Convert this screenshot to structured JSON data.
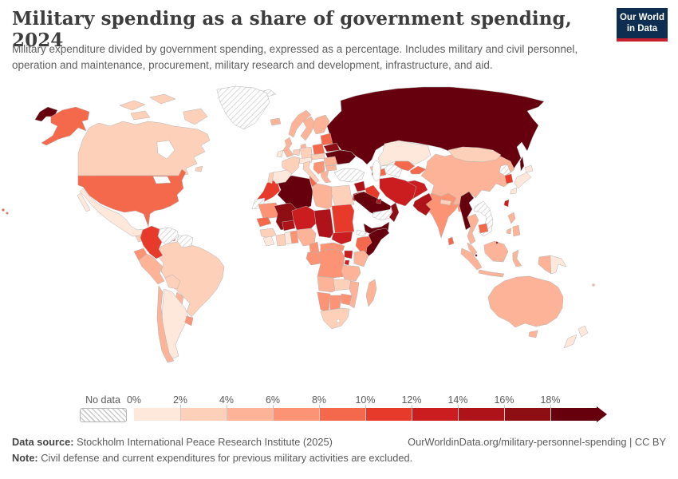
{
  "header": {
    "title": "Military spending as a share of government spending, 2024",
    "subtitle": "Military expenditure divided by government spending, expressed as a percentage. Includes military and civil personnel, operation and maintenance, procurement, military research and development, infrastructure, and aid."
  },
  "logo": {
    "line1": "Our World",
    "line2": "in Data",
    "bg_color": "#0d2d51",
    "accent_color": "#c7202c"
  },
  "legend": {
    "no_data_label": "No data",
    "tick_labels": [
      "0%",
      "2%",
      "4%",
      "6%",
      "8%",
      "10%",
      "12%",
      "14%",
      "16%",
      "18%"
    ]
  },
  "footer": {
    "data_source_label": "Data source:",
    "data_source_value": " Stockholm International Peace Research Institute (2025)",
    "link_text": "OurWorldinData.org/military-personnel-spending | CC BY",
    "note_label": "Note:",
    "note_value": " Civil defense and current expenditures for previous military activities are excluded."
  },
  "chart_data": {
    "type": "choropleth-map",
    "title": "Military spending as a share of government spending, 2024",
    "unit": "% of government spending",
    "legend_position": "bottom",
    "bin_labels": [
      "0-2%",
      "2-4%",
      "4-6%",
      "6-8%",
      "8-10%",
      "10-12%",
      "12-14%",
      "14-16%",
      "16-18%",
      "18%+"
    ],
    "bin_colors": [
      "#fee8db",
      "#fdd0b9",
      "#fcb398",
      "#fc9374",
      "#f4694c",
      "#e83a2b",
      "#cb1d1f",
      "#ae1319",
      "#8d0e13",
      "#67000d"
    ],
    "no_data_value": -1,
    "no_data_fill": "hatched",
    "country_bins": {
      "Russia": 9,
      "Ukraine": 9,
      "Belarus": 8,
      "Baltic states": 4,
      "Poland": 4,
      "Germany": 1,
      "Benelux": 1,
      "France": 1,
      "Spain": 0,
      "Portugal": 1,
      "United Kingdom": 2,
      "Ireland": 0,
      "Iceland": 2,
      "Norway": 2,
      "Sweden": 2,
      "Finland": 2,
      "Denmark": 2,
      "Alpine states": 0,
      "Czechia/Slovakia/Hungary": 1,
      "Romania": 2,
      "Bulgaria": 2,
      "Balkans": 3,
      "Greece": 2,
      "Italy": 1,
      "Svalbard": -1,
      "Kazakhstan": 0,
      "Uzbekistan": 4,
      "Turkmenistan": -1,
      "Kyrgyzstan/Tajikistan": 4,
      "Georgia": 2,
      "Armenia": 6,
      "Azerbaijan": 4,
      "Turkey": -1,
      "Syria": 7,
      "Iraq": 5,
      "Iran": 6,
      "Afghanistan": 6,
      "Pakistan": 7,
      "Saudi Arabia": 9,
      "Yemen": 9,
      "Oman": 8,
      "UAE/Qatar": -1,
      "Kuwait": 7,
      "Jordan": 7,
      "Israel": 6,
      "Morocco": 5,
      "Western Sahara": -1,
      "Algeria": 9,
      "Tunisia": 4,
      "Libya": 2,
      "Egypt": 1,
      "Mauritania": 3,
      "Mali": 8,
      "Senegal": 4,
      "Guinea": 1,
      "Sierra Leone/Liberia": 0,
      "Cote d'Ivoire": 1,
      "Burkina Faso": 7,
      "Ghana": 0,
      "Togo/Benin": 3,
      "Niger": 6,
      "Nigeria": 2,
      "Chad": 7,
      "Sudan": 5,
      "South Sudan": 6,
      "Eritrea": -1,
      "Ethiopia": 4,
      "Djibouti": 4,
      "Somalia": 9,
      "Cameroon": 3,
      "Central African Republic": 3,
      "Congo/Gabon": 3,
      "DR Congo": 3,
      "Uganda": 6,
      "Kenya": 2,
      "Rwanda/Burundi": 6,
      "Tanzania": 2,
      "Angola": 2,
      "Zambia": 1,
      "Malawi": 1,
      "Mozambique": 2,
      "Zimbabwe": 3,
      "Botswana": 3,
      "Namibia": 3,
      "South Africa": 1,
      "Madagascar": 2,
      "China": 2,
      "Mongolia": 1,
      "North Korea": -1,
      "South Korea": 5,
      "Japan": 0,
      "Taiwan": 6,
      "India": 3,
      "Nepal": 1,
      "Bangladesh": 3,
      "Sri Lanka": 4,
      "Myanmar": 9,
      "Thailand": 2,
      "Laos/Vietnam": -1,
      "Cambodia": 4,
      "Malaysia": 2,
      "Singapore": 8,
      "Brunei": 7,
      "Indonesia": 2,
      "Philippines": 2,
      "Papua New Guinea": 0,
      "Australia": 2,
      "New Zealand": 0,
      "Fiji": 2,
      "Canada": 1,
      "United States": 4,
      "Greenland": -1,
      "Mexico": 0,
      "Guatemala": 1,
      "Costa Rica/Panama": 0,
      "Cuba": -1,
      "Dominican Republic": 4,
      "Colombia": 5,
      "Venezuela": -1,
      "Guyana/Suriname": -1,
      "Ecuador": 3,
      "Peru": 2,
      "Brazil": 1,
      "Bolivia": 1,
      "Paraguay": 2,
      "Chile": 2,
      "Argentina": 0,
      "Uruguay": 3
    }
  }
}
